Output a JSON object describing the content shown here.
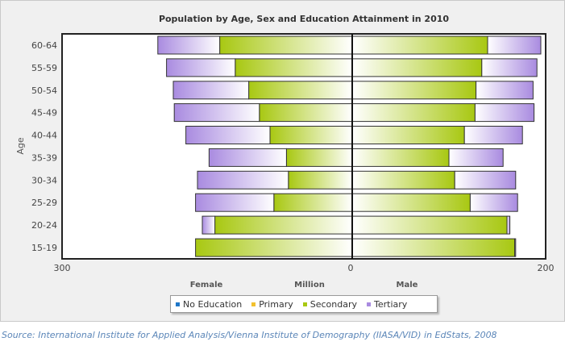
{
  "chart_data": {
    "type": "bar",
    "orientation": "horizontal-pyramid",
    "title": "Population by Age, Sex and Education Attainment in 2010",
    "ylabel": "Age",
    "center_label": "Million",
    "sides": [
      "Female",
      "Male"
    ],
    "ticks": [
      "300",
      "0",
      "200"
    ],
    "left_range": [
      0,
      300
    ],
    "right_range": [
      0,
      200
    ],
    "categories": [
      "60-64",
      "55-59",
      "50-54",
      "45-49",
      "40-44",
      "35-39",
      "30-34",
      "25-29",
      "20-24",
      "15-19"
    ],
    "series": [
      {
        "name": "No Education",
        "color": "#1f77c8",
        "female": [
          0,
          0,
          0,
          0,
          0,
          0,
          0,
          0,
          0,
          0
        ],
        "male": [
          0,
          0,
          0,
          0,
          0,
          0,
          0,
          0,
          0,
          0
        ]
      },
      {
        "name": "Primary",
        "color": "#f2c12e",
        "female": [
          0,
          0,
          0,
          0,
          0,
          0,
          0,
          0,
          0,
          0
        ],
        "male": [
          0,
          0,
          0,
          0,
          0,
          0,
          0,
          0,
          0,
          0
        ]
      },
      {
        "name": "Secondary",
        "color": "#a8c812",
        "female": [
          137,
          121,
          107,
          96,
          85,
          68,
          66,
          81,
          142,
          162
        ],
        "male": [
          140,
          134,
          128,
          127,
          116,
          100,
          106,
          122,
          160,
          168
        ]
      },
      {
        "name": "Tertiary",
        "color": "#a98be0",
        "female": [
          64,
          71,
          78,
          88,
          87,
          80,
          94,
          81,
          13,
          0
        ],
        "male": [
          55,
          57,
          59,
          61,
          60,
          56,
          63,
          49,
          3,
          1
        ]
      }
    ]
  },
  "footer": {
    "source": "Source: International Institute for Applied Analysis/Vienna Institute of Demography (IIASA/VID) in EdStats, 2008"
  }
}
